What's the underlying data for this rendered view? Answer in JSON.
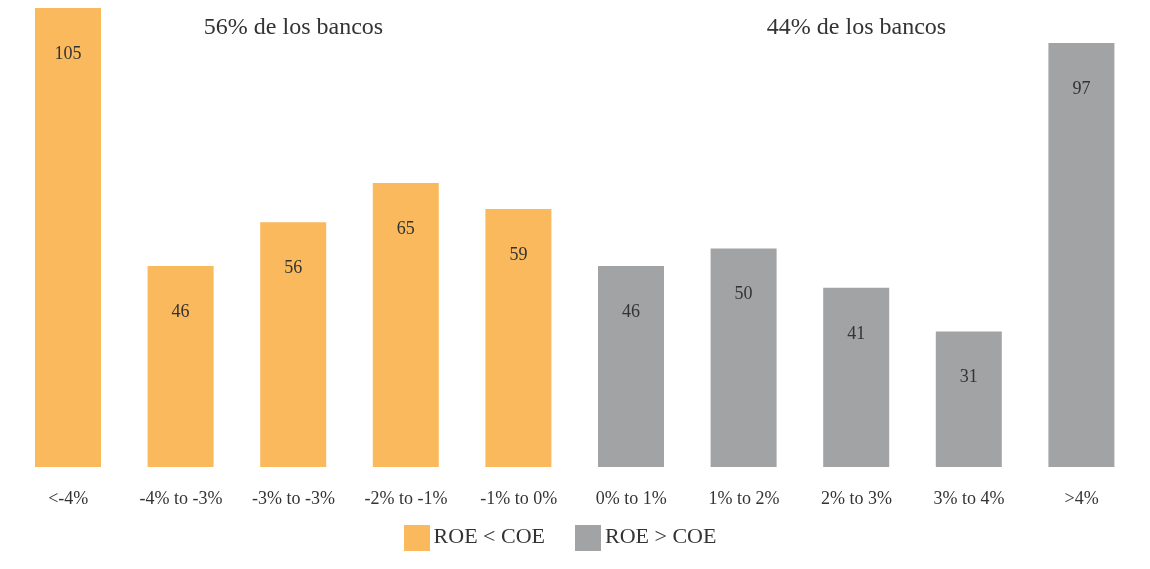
{
  "chart_data": {
    "type": "bar",
    "categories": [
      "<-4%",
      "-4% to -3%",
      "-3% to -3%",
      "-2% to -1%",
      "-1% to 0%",
      "0% to 1%",
      "1% to 2%",
      "2% to 3%",
      "3% to 4%",
      ">4%"
    ],
    "series": [
      {
        "name": "ROE < COE",
        "color": "#f9b95c",
        "values": [
          105,
          46,
          56,
          65,
          59,
          null,
          null,
          null,
          null,
          null
        ]
      },
      {
        "name": "ROE > COE",
        "color": "#a2a3a5",
        "values": [
          null,
          null,
          null,
          null,
          null,
          46,
          50,
          41,
          31,
          97
        ]
      }
    ],
    "annotations": [
      "56% de los bancos",
      "44% de los bancos"
    ],
    "data_labels": true,
    "legend": "bottom",
    "grid": false
  }
}
